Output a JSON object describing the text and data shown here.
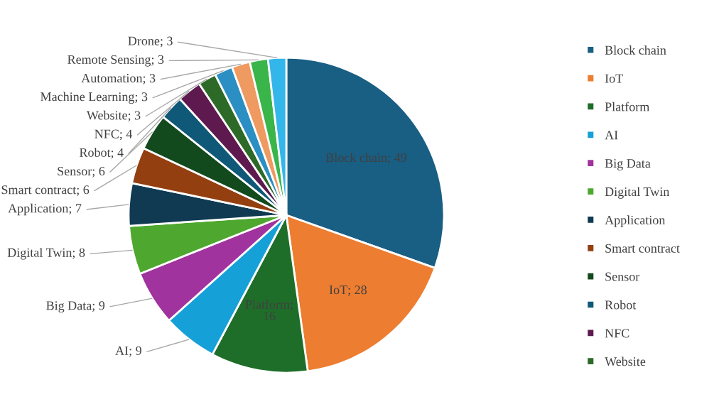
{
  "chart_data": {
    "type": "pie",
    "categories": [
      "Block chain",
      "IoT",
      "Platform",
      "AI",
      "Big Data",
      "Digital Twin",
      "Application",
      "Smart contract",
      "Sensor",
      "Robot",
      "NFC",
      "Website",
      "Machine Learning",
      "Automation",
      "Remote Sensing",
      "Drone"
    ],
    "values": [
      49,
      28,
      16,
      9,
      9,
      8,
      7,
      6,
      6,
      4,
      4,
      3,
      3,
      3,
      3,
      3
    ],
    "colors": [
      "#195e83",
      "#ed7d31",
      "#1e6e2a",
      "#16a0d8",
      "#a0339e",
      "#4ea72e",
      "#0f3a52",
      "#943f10",
      "#124a1e",
      "#0f5878",
      "#5e1a4f",
      "#2d6a28",
      "#2b8fc4",
      "#ef9a60",
      "#39b54a",
      "#33b6ea"
    ],
    "value_labels": [
      "; 49",
      "; 28",
      "; 16",
      "; 9",
      "; 9",
      "; 8",
      "; 7",
      "; 6",
      "; 6",
      "; 4",
      "; 4",
      "; 3",
      "; 3",
      "; 3",
      "; 3",
      "; 3"
    ],
    "legend": "right"
  }
}
